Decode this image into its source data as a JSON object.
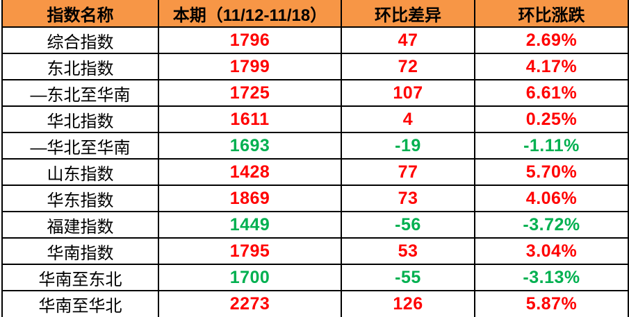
{
  "chart_data": {
    "type": "table",
    "title": "",
    "columns": [
      "指数名称",
      "本期（11/12-11/18）",
      "环比差异",
      "环比涨跌"
    ],
    "rows": [
      {
        "name": "综合指数",
        "current": "1796",
        "diff": "47",
        "change": "2.69%",
        "direction": "up"
      },
      {
        "name": "东北指数",
        "current": "1799",
        "diff": "72",
        "change": "4.17%",
        "direction": "up"
      },
      {
        "name": "—东北至华南",
        "current": "1725",
        "diff": "107",
        "change": "6.61%",
        "direction": "up"
      },
      {
        "name": "华北指数",
        "current": "1611",
        "diff": "4",
        "change": "0.25%",
        "direction": "up"
      },
      {
        "name": "—华北至华南",
        "current": "1693",
        "diff": "-19",
        "change": "-1.11%",
        "direction": "down"
      },
      {
        "name": "山东指数",
        "current": "1428",
        "diff": "77",
        "change": "5.70%",
        "direction": "up"
      },
      {
        "name": "华东指数",
        "current": "1869",
        "diff": "73",
        "change": "4.06%",
        "direction": "up"
      },
      {
        "name": "福建指数",
        "current": "1449",
        "diff": "-56",
        "change": "-3.72%",
        "direction": "down"
      },
      {
        "name": "华南指数",
        "current": "1795",
        "diff": "53",
        "change": "3.04%",
        "direction": "up"
      },
      {
        "name": "华南至东北",
        "current": "1700",
        "diff": "-55",
        "change": "-3.13%",
        "direction": "down"
      },
      {
        "name": "华南至华北",
        "current": "2273",
        "diff": "126",
        "change": "5.87%",
        "direction": "up"
      }
    ],
    "layout_hints": {
      "header_position": "top",
      "grid": "on"
    }
  },
  "colors": {
    "header_bg": "#F79646",
    "up_text": "#FF0000",
    "down_text": "#00B050",
    "border": "#000000",
    "row_bg": "#FFFFFF"
  }
}
